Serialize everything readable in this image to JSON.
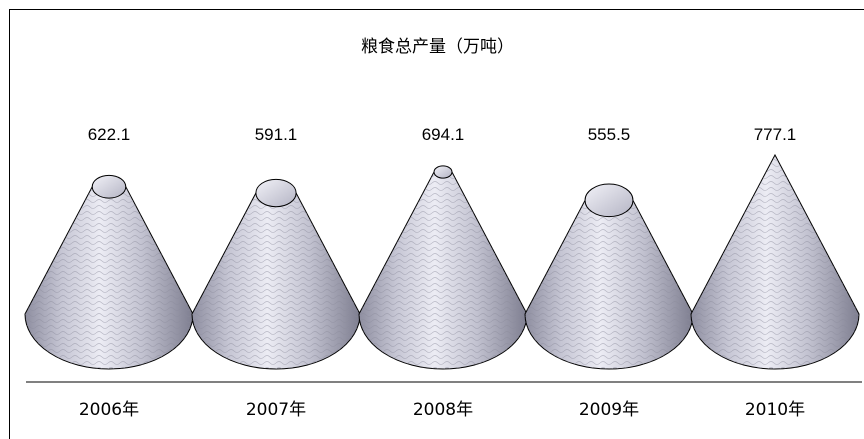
{
  "chart_data": {
    "type": "bar",
    "shape": "cone",
    "title": "粮食总产量（万吨）",
    "categories": [
      "2006年",
      "2007年",
      "2008年",
      "2009年",
      "2010年"
    ],
    "values": [
      622.1,
      591.1,
      694.1,
      555.5,
      777.1
    ],
    "data_labels": [
      "622.1",
      "591.1",
      "694.1",
      "555.5",
      "777.1"
    ],
    "xlabel": "",
    "ylabel": "",
    "ylim": [
      0,
      777.1
    ],
    "grid": false,
    "legend": "none",
    "colors": {
      "cone_light": "#e4e4ee",
      "cone_mid": "#b8b8c8",
      "cone_dark": "#8a8a9c",
      "outline": "#000000"
    }
  }
}
